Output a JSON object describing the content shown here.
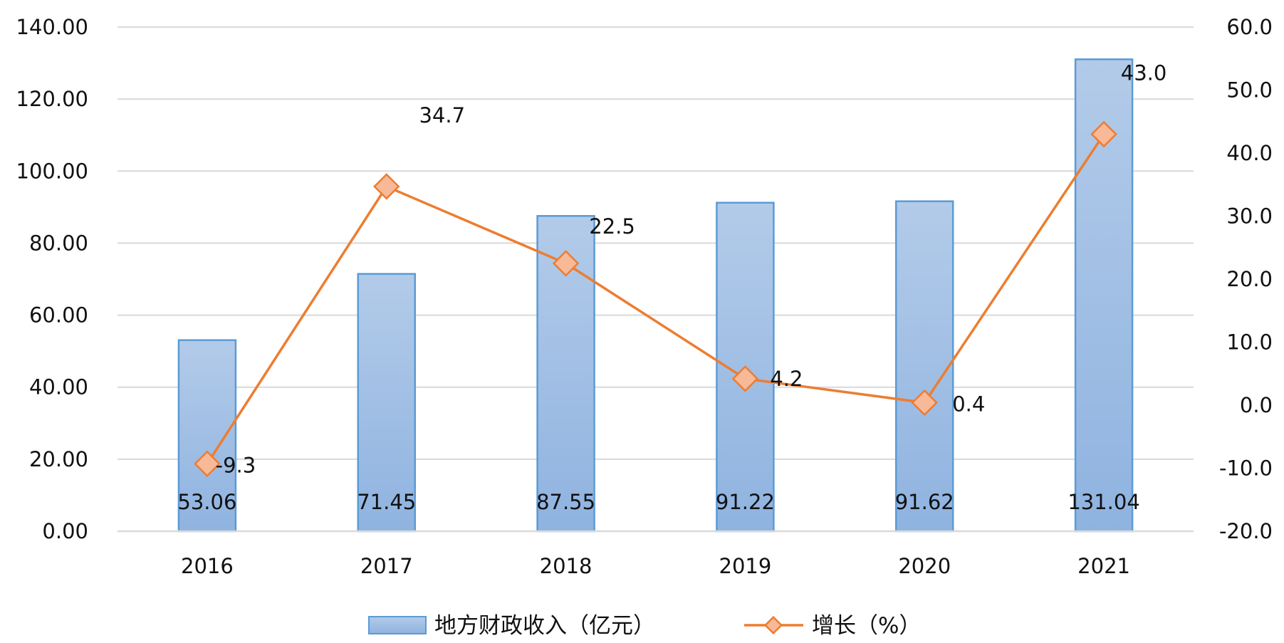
{
  "chart_data": {
    "type": "bar",
    "categories": [
      "2016",
      "2017",
      "2018",
      "2019",
      "2020",
      "2021"
    ],
    "series": [
      {
        "name": "地方财政收入（亿元）",
        "type": "bar",
        "axis": "left",
        "values": [
          53.06,
          71.45,
          87.55,
          91.22,
          91.62,
          131.04
        ],
        "labels": [
          "53.06",
          "71.45",
          "87.55",
          "91.22",
          "91.62",
          "131.04"
        ]
      },
      {
        "name": "增长（%）",
        "type": "line",
        "axis": "right",
        "values": [
          -9.3,
          34.7,
          22.5,
          4.2,
          0.4,
          43.0
        ],
        "labels": [
          "-9.3",
          "34.7",
          "22.5",
          "4.2",
          "0.4",
          "43.0"
        ]
      }
    ],
    "left_axis": {
      "ylim": [
        0,
        140
      ],
      "ticks": [
        "0.00",
        "20.00",
        "40.00",
        "60.00",
        "80.00",
        "100.00",
        "120.00",
        "140.00"
      ]
    },
    "right_axis": {
      "ylim": [
        -20,
        60
      ],
      "ticks": [
        "-20.0",
        "-10.0",
        "0.0",
        "10.0",
        "20.0",
        "30.0",
        "40.0",
        "50.0",
        "60.0"
      ]
    },
    "title": "",
    "xlabel": "",
    "ylabel": "",
    "grid": true,
    "legend_position": "bottom",
    "colors": {
      "bar_fill_top": "#b3cbe9",
      "bar_fill_bottom": "#8fb3e0",
      "bar_stroke": "#5b9bd5",
      "line": "#ed7d31",
      "marker_fill": "#f8b998",
      "grid": "#d9d9d9"
    }
  }
}
